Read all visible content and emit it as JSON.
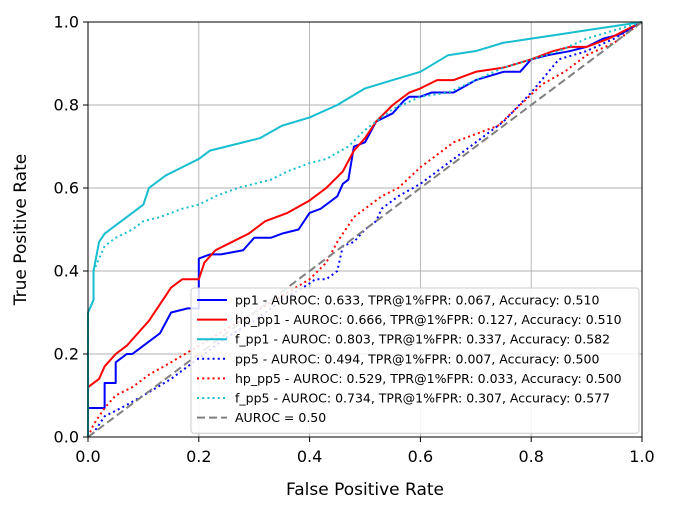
{
  "chart_data": {
    "type": "line",
    "title": "",
    "xlabel": "False Positive Rate",
    "ylabel": "True Positive Rate",
    "xlim": [
      0,
      1
    ],
    "ylim": [
      0,
      1
    ],
    "xticks": [
      "0.0",
      "0.2",
      "0.4",
      "0.6",
      "0.8",
      "1.0"
    ],
    "yticks": [
      "0.0",
      "0.2",
      "0.4",
      "0.6",
      "0.8",
      "1.0"
    ],
    "grid": true,
    "legend_position": "lower-right",
    "series": [
      {
        "name": "pp1",
        "label": "pp1 - AUROC: 0.633, TPR@1%FPR: 0.067, Accuracy: 0.510",
        "auroc": 0.633,
        "tpr_at_1pct_fpr": 0.067,
        "accuracy": 0.51,
        "color": "#0000ff",
        "style": "solid",
        "x": [
          0,
          0,
          0.03,
          0.03,
          0.05,
          0.05,
          0.07,
          0.08,
          0.1,
          0.13,
          0.15,
          0.18,
          0.2,
          0.2,
          0.22,
          0.24,
          0.28,
          0.3,
          0.33,
          0.35,
          0.38,
          0.4,
          0.42,
          0.45,
          0.46,
          0.47,
          0.48,
          0.5,
          0.52,
          0.55,
          0.57,
          0.58,
          0.6,
          0.62,
          0.66,
          0.7,
          0.75,
          0.78,
          0.8,
          0.83,
          0.87,
          0.9,
          0.93,
          0.96,
          1.0
        ],
        "y": [
          0,
          0.07,
          0.07,
          0.13,
          0.13,
          0.18,
          0.2,
          0.2,
          0.22,
          0.25,
          0.3,
          0.31,
          0.31,
          0.43,
          0.44,
          0.44,
          0.45,
          0.48,
          0.48,
          0.49,
          0.5,
          0.54,
          0.55,
          0.58,
          0.61,
          0.62,
          0.7,
          0.71,
          0.76,
          0.78,
          0.81,
          0.82,
          0.82,
          0.83,
          0.83,
          0.86,
          0.88,
          0.88,
          0.91,
          0.92,
          0.93,
          0.94,
          0.96,
          0.97,
          1.0
        ]
      },
      {
        "name": "hp_pp1",
        "label": "hp_pp1 - AUROC: 0.666, TPR@1%FPR: 0.127, Accuracy: 0.510",
        "auroc": 0.666,
        "tpr_at_1pct_fpr": 0.127,
        "accuracy": 0.51,
        "color": "#ff0000",
        "style": "solid",
        "x": [
          0,
          0,
          0.02,
          0.03,
          0.05,
          0.07,
          0.09,
          0.11,
          0.13,
          0.15,
          0.17,
          0.2,
          0.21,
          0.23,
          0.26,
          0.29,
          0.32,
          0.36,
          0.4,
          0.43,
          0.46,
          0.48,
          0.5,
          0.52,
          0.55,
          0.58,
          0.6,
          0.63,
          0.66,
          0.7,
          0.75,
          0.8,
          0.84,
          0.87,
          0.9,
          0.94,
          0.97,
          1.0
        ],
        "y": [
          0,
          0.12,
          0.14,
          0.17,
          0.2,
          0.22,
          0.25,
          0.28,
          0.32,
          0.36,
          0.38,
          0.38,
          0.42,
          0.45,
          0.47,
          0.49,
          0.52,
          0.54,
          0.57,
          0.6,
          0.64,
          0.69,
          0.72,
          0.76,
          0.8,
          0.83,
          0.84,
          0.86,
          0.86,
          0.88,
          0.89,
          0.91,
          0.93,
          0.94,
          0.94,
          0.96,
          0.98,
          1.0
        ]
      },
      {
        "name": "f_pp1",
        "label": "f_pp1 - AUROC: 0.803, TPR@1%FPR: 0.337, Accuracy: 0.582",
        "auroc": 0.803,
        "tpr_at_1pct_fpr": 0.337,
        "accuracy": 0.582,
        "color": "#17becf",
        "style": "solid",
        "x": [
          0,
          0,
          0.01,
          0.01,
          0.02,
          0.03,
          0.05,
          0.07,
          0.08,
          0.1,
          0.11,
          0.14,
          0.17,
          0.2,
          0.22,
          0.25,
          0.28,
          0.31,
          0.35,
          0.4,
          0.45,
          0.5,
          0.55,
          0.6,
          0.65,
          0.7,
          0.75,
          0.8,
          0.85,
          0.9,
          0.95,
          1.0
        ],
        "y": [
          0,
          0.3,
          0.33,
          0.4,
          0.47,
          0.49,
          0.51,
          0.53,
          0.54,
          0.56,
          0.6,
          0.63,
          0.65,
          0.67,
          0.69,
          0.7,
          0.71,
          0.72,
          0.75,
          0.77,
          0.8,
          0.84,
          0.86,
          0.88,
          0.92,
          0.93,
          0.95,
          0.96,
          0.97,
          0.98,
          0.99,
          1.0
        ]
      },
      {
        "name": "pp5",
        "label": "pp5 - AUROC: 0.494, TPR@1%FPR: 0.007, Accuracy: 0.500",
        "auroc": 0.494,
        "tpr_at_1pct_fpr": 0.007,
        "accuracy": 0.5,
        "color": "#0000ff",
        "style": "dotted",
        "x": [
          0,
          0.01,
          0.02,
          0.03,
          0.06,
          0.1,
          0.15,
          0.2,
          0.25,
          0.3,
          0.35,
          0.4,
          0.41,
          0.43,
          0.45,
          0.46,
          0.48,
          0.5,
          0.52,
          0.53,
          0.56,
          0.6,
          0.63,
          0.66,
          0.7,
          0.75,
          0.8,
          0.85,
          0.9,
          0.95,
          1.0
        ],
        "y": [
          0,
          0.01,
          0.03,
          0.05,
          0.07,
          0.1,
          0.14,
          0.19,
          0.24,
          0.28,
          0.33,
          0.37,
          0.38,
          0.38,
          0.4,
          0.46,
          0.47,
          0.5,
          0.52,
          0.55,
          0.58,
          0.61,
          0.64,
          0.67,
          0.71,
          0.76,
          0.83,
          0.91,
          0.93,
          0.96,
          1.0
        ]
      },
      {
        "name": "hp_pp5",
        "label": "hp_pp5 - AUROC: 0.529, TPR@1%FPR: 0.033, Accuracy: 0.500",
        "auroc": 0.529,
        "tpr_at_1pct_fpr": 0.033,
        "accuracy": 0.5,
        "color": "#ff0000",
        "style": "dotted",
        "x": [
          0,
          0.01,
          0.03,
          0.05,
          0.08,
          0.11,
          0.15,
          0.2,
          0.25,
          0.3,
          0.35,
          0.4,
          0.43,
          0.45,
          0.48,
          0.5,
          0.53,
          0.56,
          0.6,
          0.63,
          0.66,
          0.7,
          0.74,
          0.78,
          0.82,
          0.86,
          0.9,
          0.95,
          1.0
        ],
        "y": [
          0,
          0.03,
          0.07,
          0.1,
          0.12,
          0.15,
          0.18,
          0.22,
          0.26,
          0.3,
          0.34,
          0.38,
          0.42,
          0.47,
          0.53,
          0.55,
          0.58,
          0.6,
          0.65,
          0.68,
          0.71,
          0.73,
          0.75,
          0.8,
          0.85,
          0.88,
          0.92,
          0.95,
          1.0
        ]
      },
      {
        "name": "f_pp5",
        "label": "f_pp5 - AUROC: 0.734, TPR@1%FPR: 0.307, Accuracy: 0.577",
        "auroc": 0.734,
        "tpr_at_1pct_fpr": 0.307,
        "accuracy": 0.577,
        "color": "#17becf",
        "style": "dotted",
        "x": [
          0,
          0,
          0.01,
          0.01,
          0.03,
          0.05,
          0.08,
          0.1,
          0.13,
          0.17,
          0.2,
          0.23,
          0.27,
          0.3,
          0.33,
          0.36,
          0.4,
          0.43,
          0.47,
          0.5,
          0.55,
          0.6,
          0.65,
          0.7,
          0.75,
          0.8,
          0.85,
          0.9,
          0.95,
          1.0
        ],
        "y": [
          0,
          0.3,
          0.33,
          0.4,
          0.46,
          0.48,
          0.5,
          0.52,
          0.53,
          0.55,
          0.56,
          0.58,
          0.6,
          0.61,
          0.62,
          0.64,
          0.66,
          0.67,
          0.7,
          0.74,
          0.79,
          0.82,
          0.83,
          0.86,
          0.89,
          0.91,
          0.93,
          0.96,
          0.98,
          1.0
        ]
      },
      {
        "name": "AUROC = 0.50",
        "label": "AUROC = 0.50",
        "color": "#808080",
        "style": "dashed",
        "x": [
          0,
          1
        ],
        "y": [
          0,
          1
        ]
      }
    ]
  }
}
